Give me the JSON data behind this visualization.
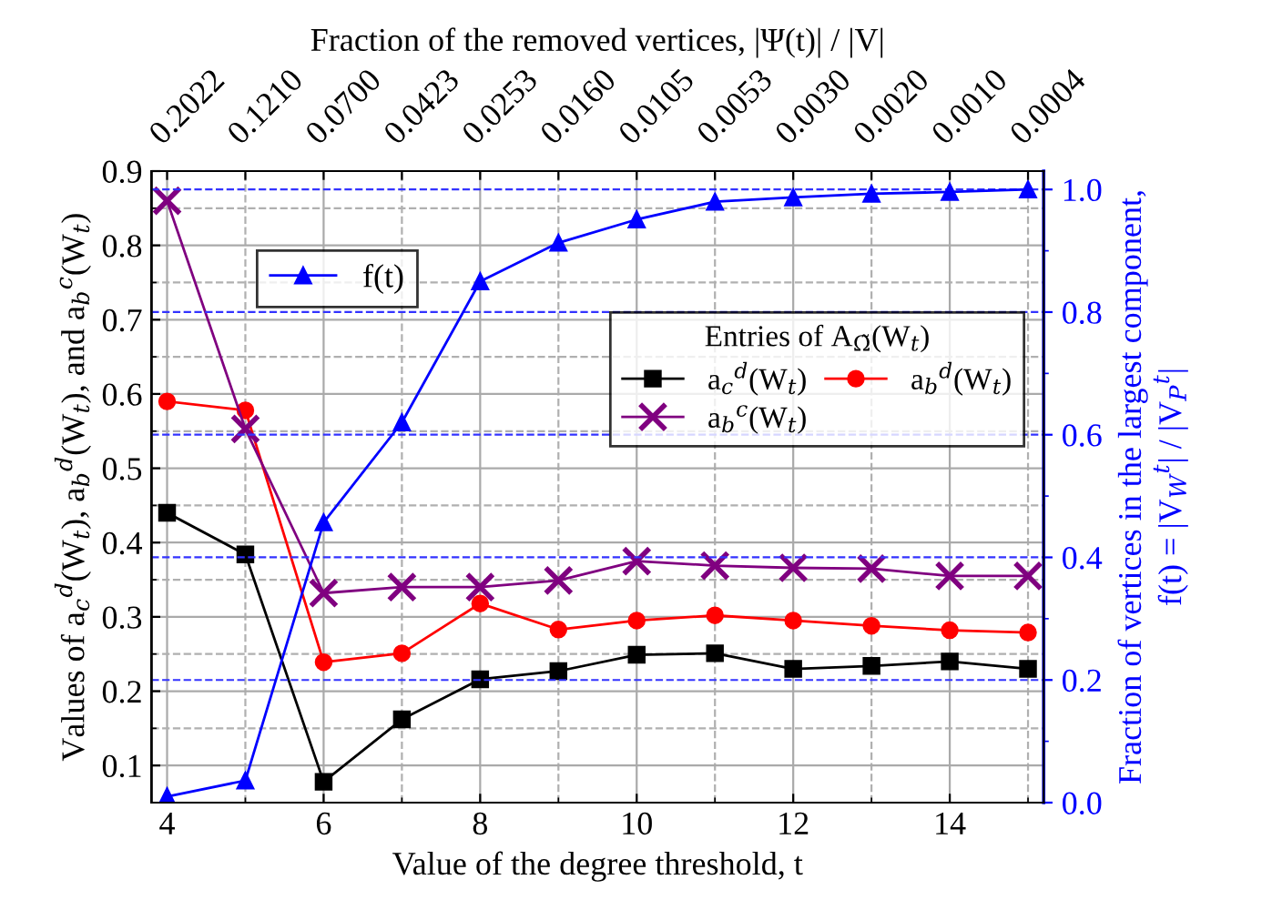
{
  "chart_data": {
    "type": "line",
    "xlabel": "Value of the degree threshold, t",
    "ylabel": "Values of a$_{c}$$^{d}$(W$_{t}$), a$_{b}$$^{d}$(W$_{t}$), and a$_{b}$$^{c}$(W$_{t}$)",
    "y2label": "Fraction of vertices in the largest component,\nf(t) = |V$_{W}$$^{t}$| / |V$_{P}$$^{t}$|",
    "x2label": "Fraction of the removed vertices, |Ψ(t)| / |V|",
    "legend_title": "Entries of A$_{Ω̃}$(W$_{t}$)",
    "x": [
      4,
      5,
      6,
      7,
      8,
      9,
      10,
      11,
      12,
      13,
      14,
      15
    ],
    "series": [
      {
        "name": "a$_{c}$$^{d}$(W$_{t}$)",
        "color": "#000000",
        "marker": "square",
        "values": [
          0.44,
          0.384,
          0.078,
          0.162,
          0.216,
          0.227,
          0.249,
          0.251,
          0.23,
          0.234,
          0.24,
          0.23
        ]
      },
      {
        "name": "a$_{b}$$^{d}$(W$_{t}$)",
        "color": "#ff0000",
        "marker": "circle",
        "values": [
          0.59,
          0.578,
          0.239,
          0.251,
          0.318,
          0.283,
          0.295,
          0.302,
          0.295,
          0.288,
          0.282,
          0.279
        ]
      },
      {
        "name": "a$_{b}$$^{c}$(W$_{t}$)",
        "color": "#800080",
        "marker": "cross",
        "values": [
          0.86,
          0.553,
          0.332,
          0.34,
          0.34,
          0.349,
          0.375,
          0.369,
          0.366,
          0.365,
          0.355,
          0.355
        ]
      },
      {
        "name": "f(t)",
        "color": "#0000ff",
        "marker": "triangle",
        "axis": "y2",
        "values": [
          0.01,
          0.036,
          0.457,
          0.62,
          0.85,
          0.913,
          0.951,
          0.98,
          0.987,
          0.993,
          0.996,
          1.0
        ]
      }
    ],
    "xlim": [
      3.8,
      15.2
    ],
    "xticks": [
      4,
      {
        "value": 5,
        "label": null
      },
      6,
      {
        "value": 7,
        "label": null
      },
      8,
      {
        "value": 9,
        "label": null
      },
      10,
      {
        "value": 11,
        "label": null
      },
      12,
      {
        "value": 13,
        "label": null
      },
      14,
      {
        "value": 15,
        "label": null
      }
    ],
    "annotations": [
      "0.2022",
      "0.1210",
      "0.0700",
      "0.0423",
      "0.0253",
      "0.0160",
      "0.0105",
      "0.0053",
      "0.0030",
      "0.0020",
      "0.0010",
      "0.0004"
    ],
    "ylim": [
      0.05,
      0.9
    ],
    "yticks": [
      0.1,
      {
        "value": 0.15,
        "label": null
      },
      0.2,
      {
        "value": 0.25,
        "label": null
      },
      0.3,
      {
        "value": 0.35,
        "label": null
      },
      0.4,
      {
        "value": 0.45,
        "label": null
      },
      0.5,
      {
        "value": 0.55,
        "label": null
      },
      0.6,
      {
        "value": 0.65,
        "label": null
      },
      0.7,
      {
        "value": 0.75,
        "label": null
      },
      0.8,
      {
        "value": 0.85,
        "label": null
      },
      0.9
    ],
    "y2lim": [
      0,
      1.03
    ],
    "y2ticks": [
      {
        "value": 0,
        "label": "0.0"
      },
      {
        "value": 0.1,
        "label": null
      },
      0.2,
      {
        "value": 0.3,
        "label": null
      },
      0.4,
      {
        "value": 0.5,
        "label": null
      },
      0.6,
      {
        "value": 0.7,
        "label": null
      },
      0.8,
      {
        "value": 0.9,
        "label": null
      },
      {
        "value": 1.0,
        "label": "1.0"
      }
    ],
    "grid": true,
    "legend": "top right"
  }
}
